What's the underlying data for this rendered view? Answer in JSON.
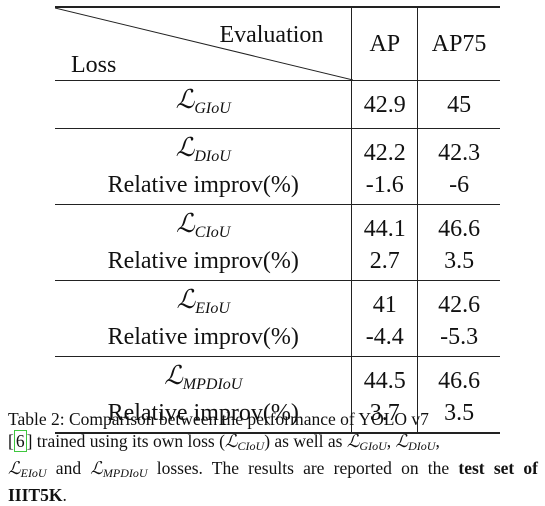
{
  "table": {
    "header": {
      "evaluation_label": "Evaluation",
      "loss_label": "Loss",
      "col_ap": "AP",
      "col_ap75": "AP75"
    },
    "groups": [
      {
        "rows": [
          {
            "loss_sub": "GIoU",
            "ap": "42.9",
            "ap75": "45"
          }
        ]
      },
      {
        "rows": [
          {
            "loss_sub": "DIoU",
            "ap": "42.2",
            "ap75": "42.3"
          },
          {
            "loss_text": "Relative improv(%)",
            "ap": "-1.6",
            "ap75": "-6"
          }
        ]
      },
      {
        "rows": [
          {
            "loss_sub": "CIoU",
            "ap": "44.1",
            "ap75": "46.6"
          },
          {
            "loss_text": "Relative improv(%)",
            "ap": "2.7",
            "ap75": "3.5"
          }
        ]
      },
      {
        "rows": [
          {
            "loss_sub": "EIoU",
            "ap": "41",
            "ap75": "42.6"
          },
          {
            "loss_text": "Relative improv(%)",
            "ap": "-4.4",
            "ap75": "-5.3"
          }
        ]
      },
      {
        "rows": [
          {
            "loss_sub": "MPDIoU",
            "ap": "44.5",
            "ap75": "46.6",
            "bold": true
          },
          {
            "loss_text": "Relative improv(%)",
            "ap": "3.7",
            "ap75": "3.5",
            "bold": true
          }
        ]
      }
    ]
  },
  "caption": {
    "t1": "Table 2: Comparison between the performance of YOLO v7",
    "ref": "6",
    "t2": " trained using its own loss (",
    "s_ciou": "CIoU",
    "t3": ") as well as ",
    "s_giou": "GIoU",
    "t4": ", ",
    "s_diou": "DIoU",
    "t5": ",",
    "s_eiou": "EIoU",
    "t6": " and ",
    "s_mpdiou": "MPDIoU",
    "t7": " losses. The results are reported on the ",
    "bold_tail": "test set of IIIT5K",
    "t8": "."
  }
}
